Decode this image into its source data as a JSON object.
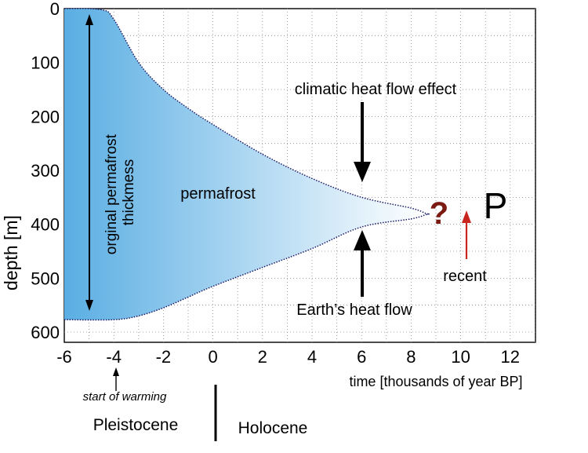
{
  "axes": {
    "ylabel": "depth [m]",
    "xlabel": "time [thousands of year BP]",
    "xticks": [
      "-6",
      "-4",
      "-2",
      "0",
      "2",
      "4",
      "6",
      "8",
      "10",
      "12"
    ],
    "yticks": [
      "0",
      "100",
      "200",
      "300",
      "400",
      "500",
      "600"
    ],
    "xrange": [
      -6,
      13
    ],
    "yrange": [
      0,
      620
    ],
    "grid": "dotted"
  },
  "annotations": {
    "permafrost": "permafrost",
    "original_thickness": [
      "orginal permafrost",
      "thickmess"
    ],
    "climatic": "climatic heat flow effect",
    "earth": "Earth’s heat flow",
    "question": "?",
    "p": "P",
    "recent": "recent",
    "start_warming": "start of warming",
    "pleistocene": "Pleistocene",
    "holocene": "Holocene"
  },
  "colors": {
    "fill_dark": "#5aaee3",
    "fill_light": "#ffffff",
    "boundary": "#1a1a66",
    "question": "#7a1a10",
    "recent_arrow": "#c8251f"
  },
  "chart_data": {
    "type": "area",
    "xlabel": "time [thousands of year BP]",
    "ylabel": "depth [m]",
    "xlim": [
      -6,
      13
    ],
    "ylim": [
      0,
      620
    ],
    "grid": true,
    "series": [
      {
        "name": "climatic heat flow effect",
        "x": [
          -6,
          -4.5,
          -4,
          -3,
          -2,
          -1,
          0,
          2,
          4,
          6,
          8,
          8.6
        ],
        "y": [
          0,
          2,
          20,
          100,
          150,
          185,
          215,
          270,
          315,
          350,
          370,
          380
        ]
      },
      {
        "name": "Earth’s heat flow",
        "x": [
          -6,
          -4,
          -3,
          -2,
          -1,
          0,
          2,
          4,
          6,
          8,
          8.6
        ],
        "y": [
          577,
          577,
          570,
          555,
          535,
          515,
          480,
          445,
          405,
          390,
          382
        ]
      }
    ]
  }
}
